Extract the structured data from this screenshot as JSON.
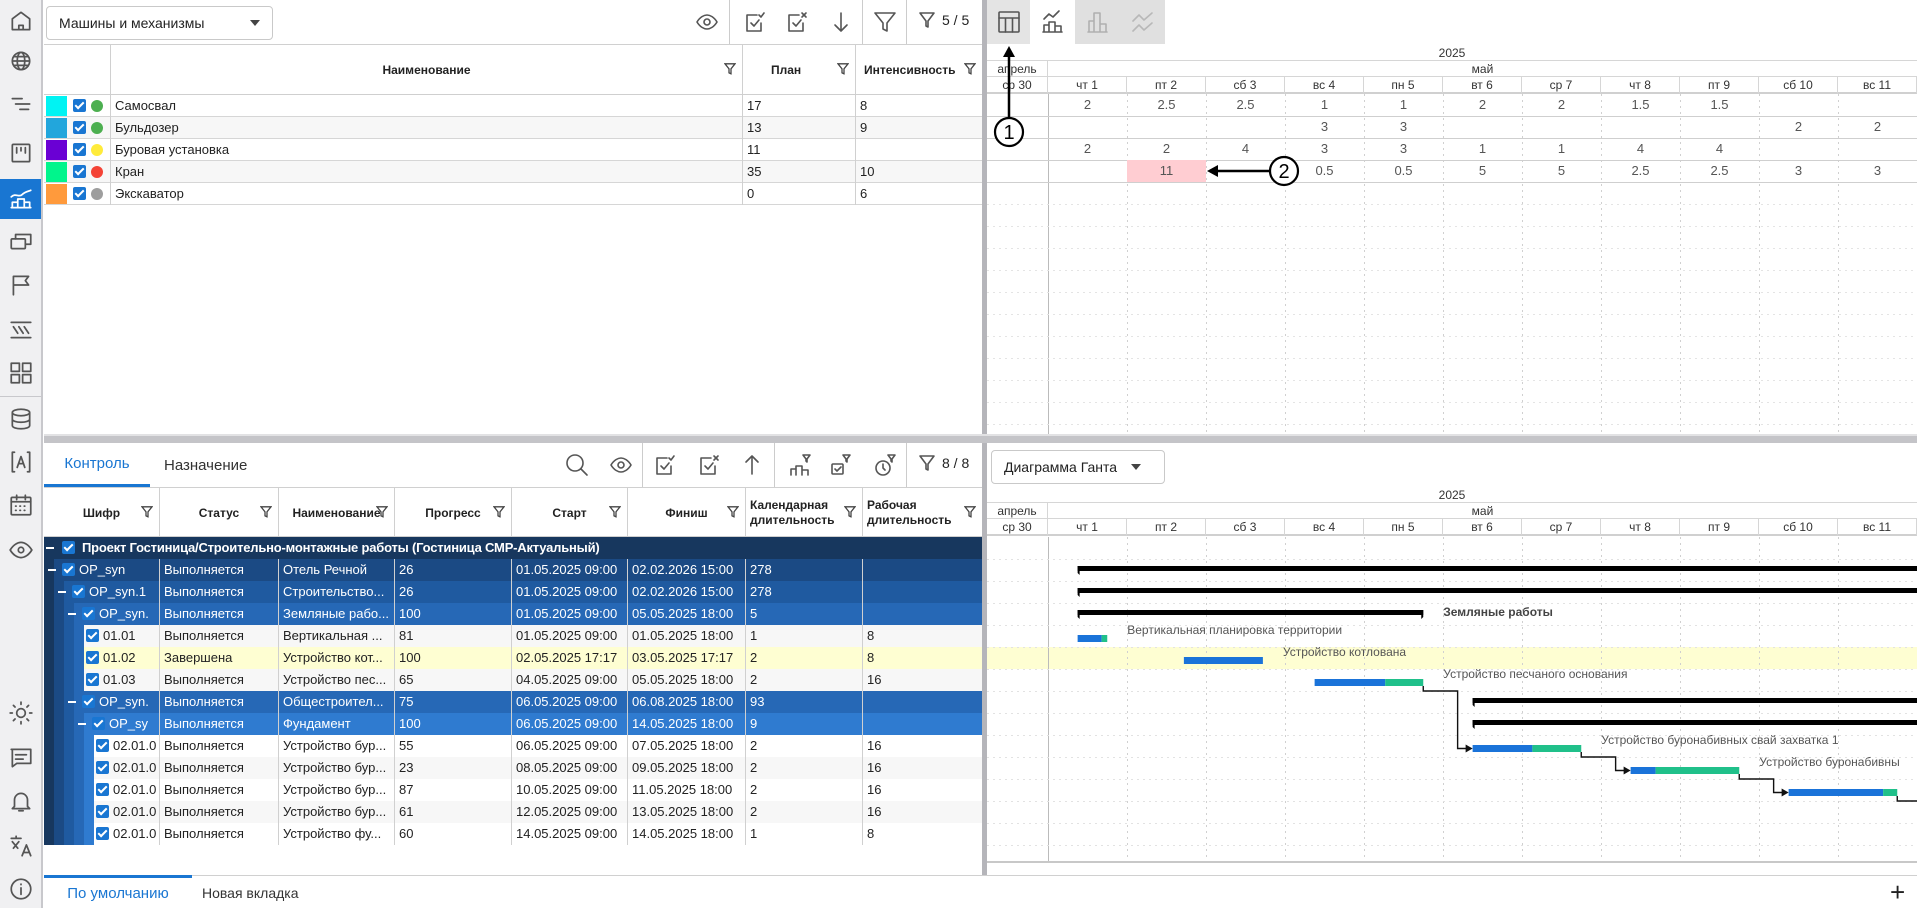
{
  "sidebar": {
    "top_items": [
      "home-icon",
      "globe-icon",
      "list-lines-icon",
      "kanban-icon",
      "resource-chart-icon",
      "windows-icon",
      "flag-icon",
      "hatch-icon",
      "grid-icon",
      "database-icon",
      "bracket-a-icon",
      "calendar-icon",
      "eye-icon"
    ],
    "bottom_items": [
      "sun-icon",
      "comment-icon",
      "bell-icon",
      "translate-icon",
      "info-icon"
    ],
    "active_index": 4
  },
  "resources_panel": {
    "dropdown": "Машины и механизмы",
    "filter_count": "5 / 5",
    "columns": {
      "name": "Наименование",
      "plan": "План",
      "intensity": "Интенсивность"
    },
    "rows": [
      {
        "color": "#00f3f3",
        "status_color": "#4caf50",
        "name": "Самосвал",
        "plan": "17",
        "intensity": "8"
      },
      {
        "color": "#22a6dc",
        "status_color": "#4caf50",
        "name": "Бульдозер",
        "plan": "13",
        "intensity": "9"
      },
      {
        "color": "#6a00d4",
        "status_color": "#ffeb3b",
        "name": "Буровая установка",
        "plan": "11",
        "intensity": ""
      },
      {
        "color": "#00f58c",
        "status_color": "#f44336",
        "name": "Кран",
        "plan": "35",
        "intensity": "10"
      },
      {
        "color": "#ff9a3c",
        "status_color": "#9e9e9e",
        "name": "Экскаватор",
        "plan": "0",
        "intensity": "6"
      }
    ]
  },
  "timeline": {
    "year": "2025",
    "months": [
      "апрель",
      "май"
    ],
    "days": [
      "ср 30",
      "чт 1",
      "пт 2",
      "сб 3",
      "вс 4",
      "пн 5",
      "вт 6",
      "ср 7",
      "чт 8",
      "пт 9",
      "сб 10",
      "вс 11"
    ]
  },
  "resource_grid": {
    "view_buttons": [
      {
        "icon": "table-view-icon",
        "state": "active"
      },
      {
        "icon": "bar-line-chart-icon",
        "state": "enabled"
      },
      {
        "icon": "bar-chart-icon",
        "state": "disabled"
      },
      {
        "icon": "line-chart-icon",
        "state": "disabled"
      }
    ],
    "rows": [
      [
        "",
        "2",
        "2.5",
        "2.5",
        "1",
        "1",
        "2",
        "2",
        "1.5",
        "1.5",
        "",
        ""
      ],
      [
        "",
        "",
        "",
        "",
        "3",
        "3",
        "",
        "",
        "",
        "",
        "2",
        "2"
      ],
      [
        "",
        "2",
        "2",
        "4",
        "3",
        "3",
        "1",
        "1",
        "4",
        "4",
        "",
        ""
      ],
      [
        "",
        "",
        "11",
        "",
        "0.5",
        "0.5",
        "5",
        "5",
        "2.5",
        "2.5",
        "3",
        "3"
      ]
    ],
    "overload_cell": {
      "row": 3,
      "col": 2,
      "color": "#ffcdd2"
    },
    "annotations": [
      "1",
      "2"
    ]
  },
  "tasks_panel": {
    "tabs": [
      "Контроль",
      "Назначение"
    ],
    "active_tab": 0,
    "filter_count": "8 / 8",
    "columns": [
      "Шифр",
      "Статус",
      "Наименование",
      "Прогресс",
      "Старт",
      "Финиш",
      "Календарная длительность",
      "Рабочая длительность"
    ],
    "project_title": "Проект Гостиница/Строительно-монтажные работы (Гостиница СМР-Актуальный)",
    "rows": [
      {
        "level": 1,
        "type": "group",
        "code": "OP_syn",
        "status": "Выполняется",
        "name": "Отель Речной",
        "progress": "26",
        "start": "01.05.2025 09:00",
        "finish": "02.02.2026 15:00",
        "cal": "278",
        "work": ""
      },
      {
        "level": 2,
        "type": "group",
        "code": "OP_syn.1",
        "status": "Выполняется",
        "name": "Строительство...",
        "progress": "26",
        "start": "01.05.2025 09:00",
        "finish": "02.02.2026 15:00",
        "cal": "278",
        "work": ""
      },
      {
        "level": 3,
        "type": "group",
        "code": "OP_syn.",
        "status": "Выполняется",
        "name": "Земляные рабо...",
        "progress": "100",
        "start": "01.05.2025 09:00",
        "finish": "05.05.2025 18:00",
        "cal": "5",
        "work": ""
      },
      {
        "level": 4,
        "type": "leaf",
        "code": "01.01",
        "status": "Выполняется",
        "name": "Вертикальная ...",
        "progress": "81",
        "start": "01.05.2025 09:00",
        "finish": "01.05.2025 18:00",
        "cal": "1",
        "work": "8"
      },
      {
        "level": 4,
        "type": "leaf",
        "code": "01.02",
        "status": "Завершена",
        "name": "Устройство кот...",
        "progress": "100",
        "start": "02.05.2025 17:17",
        "finish": "03.05.2025 17:17",
        "cal": "2",
        "work": "8",
        "highlight": true
      },
      {
        "level": 4,
        "type": "leaf",
        "code": "01.03",
        "status": "Выполняется",
        "name": "Устройство пес...",
        "progress": "65",
        "start": "04.05.2025 09:00",
        "finish": "05.05.2025 18:00",
        "cal": "2",
        "work": "16"
      },
      {
        "level": 3,
        "type": "group",
        "code": "OP_syn.",
        "status": "Выполняется",
        "name": "Общестроител...",
        "progress": "75",
        "start": "06.05.2025 09:00",
        "finish": "06.08.2025 18:00",
        "cal": "93",
        "work": ""
      },
      {
        "level": 4,
        "type": "group",
        "code": "OP_sy",
        "status": "Выполняется",
        "name": "Фундамент",
        "progress": "100",
        "start": "06.05.2025 09:00",
        "finish": "14.05.2025 18:00",
        "cal": "9",
        "work": ""
      },
      {
        "level": 5,
        "type": "leaf",
        "code": "02.01.0",
        "status": "Выполняется",
        "name": "Устройство бур...",
        "progress": "55",
        "start": "06.05.2025 09:00",
        "finish": "07.05.2025 18:00",
        "cal": "2",
        "work": "16"
      },
      {
        "level": 5,
        "type": "leaf",
        "code": "02.01.0",
        "status": "Выполняется",
        "name": "Устройство бур...",
        "progress": "23",
        "start": "08.05.2025 09:00",
        "finish": "09.05.2025 18:00",
        "cal": "2",
        "work": "16"
      },
      {
        "level": 5,
        "type": "leaf",
        "code": "02.01.0",
        "status": "Выполняется",
        "name": "Устройство бур...",
        "progress": "87",
        "start": "10.05.2025 09:00",
        "finish": "11.05.2025 18:00",
        "cal": "2",
        "work": "16"
      },
      {
        "level": 5,
        "type": "leaf",
        "code": "02.01.0",
        "status": "Выполняется",
        "name": "Устройство бур...",
        "progress": "61",
        "start": "12.05.2025 09:00",
        "finish": "13.05.2025 18:00",
        "cal": "2",
        "work": "16"
      },
      {
        "level": 5,
        "type": "leaf",
        "code": "02.01.0",
        "status": "Выполняется",
        "name": "Устройство фу...",
        "progress": "60",
        "start": "14.05.2025 09:00",
        "finish": "14.05.2025 18:00",
        "cal": "1",
        "work": "8"
      }
    ]
  },
  "gantt": {
    "view": "Диаграмма Ганта",
    "labels": [
      "",
      "",
      "Земляные работы",
      "Вертикальная планировка территории",
      "Устройство котлована",
      "Устройство песчаного основания",
      "",
      "",
      "Устройство буронабивных свай захватка 1",
      "Устройство буронабивны",
      "",
      "",
      ""
    ],
    "colors": {
      "done": "#1a73d9",
      "remaining": "#20c08a",
      "summary": "#000000",
      "highlight_row": "#fefed2"
    }
  },
  "footer_tabs": {
    "tabs": [
      "По умолчанию",
      "Новая вкладка"
    ],
    "active": 0,
    "add": "+"
  }
}
